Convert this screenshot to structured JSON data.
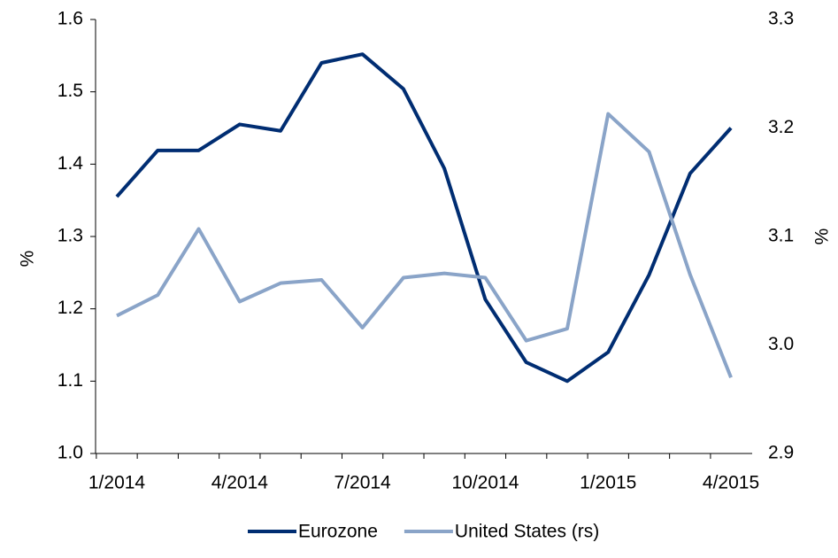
{
  "chart_data": {
    "type": "line",
    "categories": [
      "1/2014",
      null,
      null,
      "4/2014",
      null,
      null,
      "7/2014",
      null,
      null,
      "10/2014",
      null,
      null,
      "1/2015",
      null,
      null,
      "4/2015"
    ],
    "y_label": "%",
    "y2_label": "%",
    "ylim": [
      1.0,
      1.6
    ],
    "yticks": [
      {
        "value": 1,
        "label": "1.0"
      },
      1.1,
      1.2,
      1.3,
      1.4,
      1.5,
      1.6
    ],
    "y2lim": [
      2.9,
      3.3
    ],
    "y2ticks": [
      2.9,
      {
        "value": 3,
        "label": "3.0"
      },
      3.1,
      3.2,
      3.3
    ],
    "legend": "bottom",
    "series": [
      {
        "name": "Eurozone",
        "color": "#002d72",
        "values": [
          1.355,
          1.419,
          1.419,
          1.455,
          1.446,
          1.54,
          1.552,
          1.504,
          1.394,
          1.213,
          1.126,
          1.1,
          1.14,
          1.247,
          1.387,
          1.45
        ]
      },
      {
        "name": "United States (rs)",
        "color": "#8aa4c8",
        "axis": "y2",
        "values": [
          3.027,
          3.046,
          3.107,
          3.04,
          3.057,
          3.06,
          3.016,
          3.062,
          3.066,
          3.062,
          3.004,
          3.015,
          3.213,
          3.178,
          3.065,
          2.97
        ]
      }
    ]
  }
}
